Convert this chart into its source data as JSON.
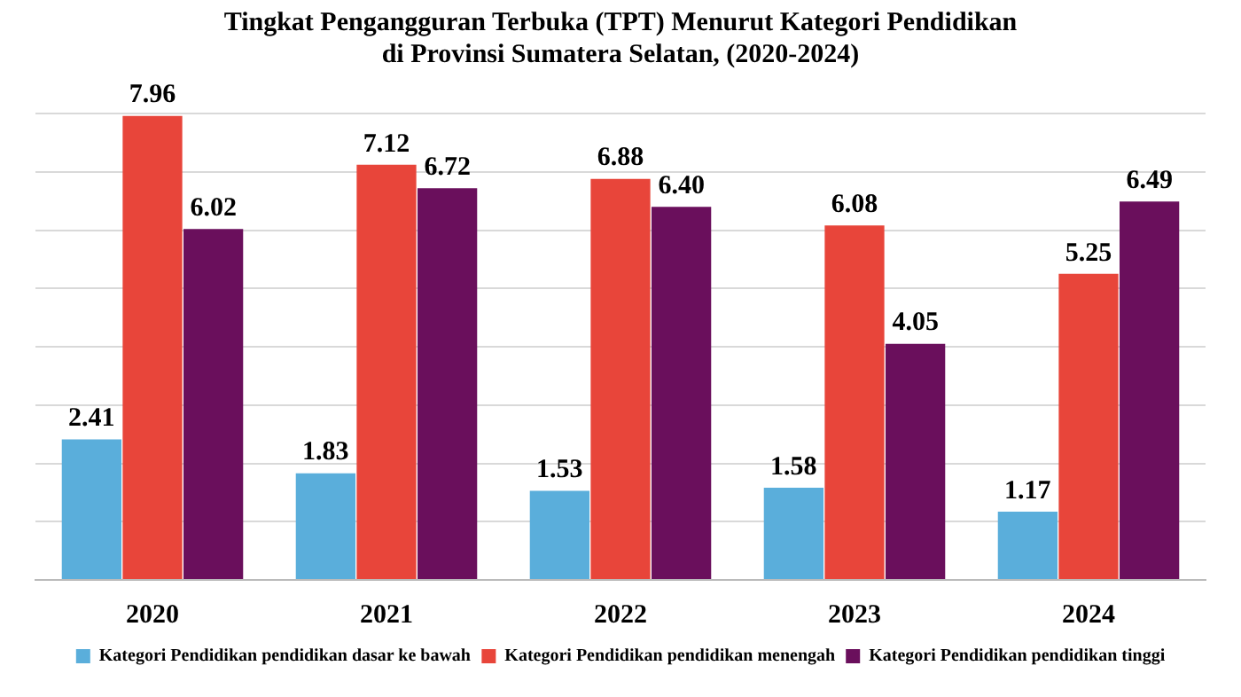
{
  "chart_data": {
    "type": "bar",
    "title": "Tingkat Pengangguran Terbuka (TPT) Menurut Kategori Pendidikan di Provinsi Sumatera Selatan, (2020-2024)",
    "categories": [
      "2020",
      "2021",
      "2022",
      "2023",
      "2024"
    ],
    "series": [
      {
        "name": "Kategori Pendidikan pendidikan dasar ke bawah",
        "color": "#5aaedb",
        "values": [
          2.41,
          1.83,
          1.53,
          1.58,
          1.17
        ],
        "value_labels": [
          "2.41",
          "1.83",
          "1.53",
          "1.58",
          "1.17"
        ]
      },
      {
        "name": "Kategori Pendidikan pendidikan menengah",
        "color": "#e8453a",
        "values": [
          7.96,
          7.12,
          6.88,
          6.08,
          5.25
        ],
        "value_labels": [
          "7.96",
          "7.12",
          "6.88",
          "6.08",
          "5.25"
        ]
      },
      {
        "name": "Kategori Pendidikan pendidikan tinggi",
        "color": "#6a0f5c",
        "values": [
          6.02,
          6.72,
          6.4,
          4.05,
          6.49
        ],
        "value_labels": [
          "6.02",
          "6.72",
          "6.40",
          "4.05",
          "6.49"
        ]
      }
    ],
    "ylim": [
      0,
      8
    ],
    "yticks": [
      {
        "value": 0,
        "label": null
      },
      {
        "value": 1,
        "label": null
      },
      {
        "value": 2,
        "label": null
      },
      {
        "value": 3,
        "label": null
      },
      {
        "value": 4,
        "label": null
      },
      {
        "value": 5,
        "label": null
      },
      {
        "value": 6,
        "label": null
      },
      {
        "value": 7,
        "label": null
      },
      {
        "value": 8,
        "label": null
      }
    ],
    "tick_labels": "x",
    "grid": "y",
    "legend": "bottom"
  }
}
